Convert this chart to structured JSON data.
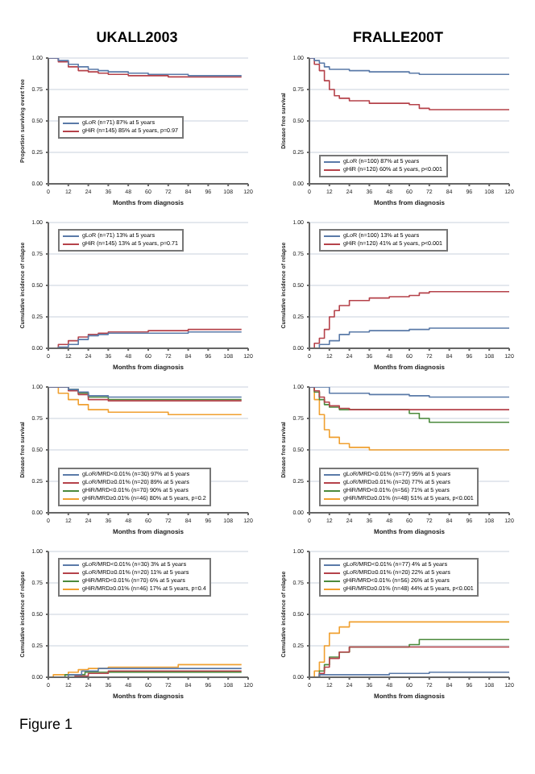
{
  "chart_data": [
    {
      "type": "step",
      "title": "UKALL2003",
      "ylabel": "Proportion surviving event free",
      "xlabel": "Months from diagnosis",
      "xlim": [
        0,
        120
      ],
      "xticks": [
        0,
        12,
        24,
        36,
        48,
        60,
        72,
        84,
        96,
        108,
        120
      ],
      "ylim": [
        0,
        1
      ],
      "yticks": [
        {
          "value": 0,
          "label": "0.00"
        },
        {
          "value": 0.25,
          "label": "0.25"
        },
        {
          "value": 0.5,
          "label": "0.50"
        },
        {
          "value": 0.75,
          "label": "0.75"
        },
        {
          "value": 1,
          "label": "1.00"
        }
      ],
      "grid": "y",
      "legend": "left",
      "series": [
        {
          "name": "gLoR (n=71) 87% at 5 years",
          "color": "#5a7aa8",
          "x": [
            0,
            6,
            12,
            18,
            24,
            30,
            36,
            48,
            60,
            72,
            84,
            96,
            108,
            116
          ],
          "values": [
            1,
            0.98,
            0.95,
            0.93,
            0.91,
            0.9,
            0.89,
            0.88,
            0.87,
            0.87,
            0.86,
            0.86,
            0.86,
            0.86
          ]
        },
        {
          "name": "gHiR (n=145) 85% at 5 years, p=0.97",
          "color": "#b5424a",
          "x": [
            0,
            6,
            12,
            18,
            24,
            30,
            36,
            48,
            60,
            72,
            84,
            96,
            108,
            116
          ],
          "values": [
            1,
            0.97,
            0.93,
            0.9,
            0.89,
            0.88,
            0.87,
            0.86,
            0.86,
            0.85,
            0.85,
            0.85,
            0.85,
            0.85
          ]
        }
      ]
    },
    {
      "type": "step",
      "title": "FRALLE200T",
      "ylabel": "Disease free survival",
      "xlabel": "Months from diagnosis",
      "xlim": [
        0,
        120
      ],
      "xticks": [
        0,
        12,
        24,
        36,
        48,
        60,
        72,
        84,
        96,
        108,
        120
      ],
      "ylim": [
        0,
        1
      ],
      "yticks": [
        {
          "value": 0,
          "label": "0.00"
        },
        {
          "value": 0.25,
          "label": "0.25"
        },
        {
          "value": 0.5,
          "label": "0.50"
        },
        {
          "value": 0.75,
          "label": "0.75"
        },
        {
          "value": 1,
          "label": "1.00"
        }
      ],
      "grid": "y",
      "legend": "bottom left",
      "series": [
        {
          "name": "gLoR (n=100) 87% at 5 years",
          "color": "#5a7aa8",
          "x": [
            0,
            3,
            6,
            9,
            12,
            24,
            36,
            48,
            60,
            66,
            72,
            96,
            120
          ],
          "values": [
            1,
            0.98,
            0.96,
            0.93,
            0.91,
            0.9,
            0.89,
            0.89,
            0.88,
            0.87,
            0.87,
            0.87,
            0.87
          ]
        },
        {
          "name": "gHiR (n=120) 60% at 5 years, p<0.001",
          "color": "#b5424a",
          "x": [
            0,
            3,
            6,
            9,
            12,
            15,
            18,
            24,
            36,
            48,
            60,
            66,
            72,
            96,
            120
          ],
          "values": [
            1,
            0.95,
            0.9,
            0.82,
            0.75,
            0.7,
            0.68,
            0.66,
            0.64,
            0.64,
            0.63,
            0.6,
            0.59,
            0.59,
            0.59
          ]
        }
      ]
    },
    {
      "type": "step",
      "ylabel": "Cumulative incidence of relapse",
      "xlabel": "Months from diagnosis",
      "xlim": [
        0,
        120
      ],
      "xticks": [
        0,
        12,
        24,
        36,
        48,
        60,
        72,
        84,
        96,
        108,
        120
      ],
      "ylim": [
        0,
        1
      ],
      "yticks": [
        {
          "value": 0,
          "label": "0.00"
        },
        {
          "value": 0.25,
          "label": "0.25"
        },
        {
          "value": 0.5,
          "label": "0.50"
        },
        {
          "value": 0.75,
          "label": "0.75"
        },
        {
          "value": 1,
          "label": "1.00"
        }
      ],
      "grid": "y",
      "legend": "top left",
      "series": [
        {
          "name": "gLoR (n=71) 13% at 5 years",
          "color": "#5a7aa8",
          "x": [
            0,
            6,
            12,
            18,
            24,
            30,
            36,
            60,
            84,
            108,
            116
          ],
          "values": [
            0,
            0.01,
            0.03,
            0.07,
            0.1,
            0.11,
            0.12,
            0.12,
            0.13,
            0.13,
            0.13
          ]
        },
        {
          "name": "gHiR (n=145) 13% at 5 years, p=0.71",
          "color": "#b5424a",
          "x": [
            0,
            6,
            12,
            18,
            24,
            30,
            36,
            60,
            84,
            108,
            116
          ],
          "values": [
            0,
            0.03,
            0.06,
            0.09,
            0.11,
            0.12,
            0.13,
            0.14,
            0.15,
            0.15,
            0.15
          ]
        }
      ]
    },
    {
      "type": "step",
      "ylabel": "Cumulative incidence of relapse",
      "xlabel": "Months from diagnosis",
      "xlim": [
        0,
        120
      ],
      "xticks": [
        0,
        12,
        24,
        36,
        48,
        60,
        72,
        84,
        96,
        108,
        120
      ],
      "ylim": [
        0,
        1
      ],
      "yticks": [
        {
          "value": 0,
          "label": "0.00"
        },
        {
          "value": 0.25,
          "label": "0.25"
        },
        {
          "value": 0.5,
          "label": "0.50"
        },
        {
          "value": 0.75,
          "label": "0.75"
        },
        {
          "value": 1,
          "label": "1.00"
        }
      ],
      "grid": "y",
      "legend": "top left",
      "series": [
        {
          "name": "gLoR (n=100) 13% at 5 years",
          "color": "#5a7aa8",
          "x": [
            0,
            6,
            12,
            18,
            24,
            36,
            48,
            60,
            72,
            96,
            120
          ],
          "values": [
            0,
            0.03,
            0.06,
            0.11,
            0.13,
            0.14,
            0.14,
            0.15,
            0.16,
            0.16,
            0.16
          ]
        },
        {
          "name": "gHiR (n=120) 41% at 5 years, p<0.001",
          "color": "#b5424a",
          "x": [
            0,
            3,
            6,
            9,
            12,
            15,
            18,
            24,
            36,
            48,
            60,
            66,
            72,
            96,
            120
          ],
          "values": [
            0,
            0.04,
            0.08,
            0.15,
            0.25,
            0.3,
            0.34,
            0.38,
            0.4,
            0.41,
            0.42,
            0.44,
            0.45,
            0.45,
            0.45
          ]
        }
      ]
    },
    {
      "type": "step",
      "ylabel": "Disease free survival",
      "xlabel": "Months from diagnosis",
      "xlim": [
        0,
        120
      ],
      "xticks": [
        0,
        12,
        24,
        36,
        48,
        60,
        72,
        84,
        96,
        108,
        120
      ],
      "ylim": [
        0,
        1
      ],
      "yticks": [
        {
          "value": 0,
          "label": "0.00"
        },
        {
          "value": 0.25,
          "label": "0.25"
        },
        {
          "value": 0.5,
          "label": "0.50"
        },
        {
          "value": 0.75,
          "label": "0.75"
        },
        {
          "value": 1,
          "label": "1.00"
        }
      ],
      "grid": "y",
      "legend": "bottom left",
      "series": [
        {
          "name": "gLoR/MRD<0.01% (n=30) 97% at 5 years",
          "color": "#5a7aa8",
          "x": [
            0,
            12,
            18,
            24,
            36,
            60,
            116
          ],
          "values": [
            1,
            0.98,
            0.96,
            0.93,
            0.92,
            0.92,
            0.92
          ]
        },
        {
          "name": "gLoR/MRD≥0.01% (n=20) 89% at 5 years",
          "color": "#b5424a",
          "x": [
            0,
            12,
            18,
            24,
            36,
            60,
            116
          ],
          "values": [
            1,
            0.97,
            0.94,
            0.9,
            0.89,
            0.89,
            0.89
          ]
        },
        {
          "name": "gHiR/MRD<0.01% (n=70) 90% at 5 years",
          "color": "#4b8a3c",
          "x": [
            0,
            12,
            18,
            24,
            36,
            60,
            116
          ],
          "values": [
            1,
            0.98,
            0.95,
            0.92,
            0.9,
            0.9,
            0.9
          ]
        },
        {
          "name": "gHiR/MRD≥0.01% (n=46) 80% at 5 years, p=0.2",
          "color": "#f0a030",
          "x": [
            0,
            6,
            12,
            18,
            24,
            36,
            60,
            72,
            116
          ],
          "values": [
            1,
            0.95,
            0.9,
            0.86,
            0.82,
            0.8,
            0.8,
            0.78,
            0.78
          ]
        }
      ]
    },
    {
      "type": "step",
      "ylabel": "Disease free survival",
      "xlabel": "Months from diagnosis",
      "xlim": [
        0,
        120
      ],
      "xticks": [
        0,
        12,
        24,
        36,
        48,
        60,
        72,
        84,
        96,
        108,
        120
      ],
      "ylim": [
        0,
        1
      ],
      "yticks": [
        {
          "value": 0,
          "label": "0.00"
        },
        {
          "value": 0.25,
          "label": "0.25"
        },
        {
          "value": 0.5,
          "label": "0.50"
        },
        {
          "value": 0.75,
          "label": "0.75"
        },
        {
          "value": 1,
          "label": "1.00"
        }
      ],
      "grid": "y",
      "legend": "bottom left",
      "series": [
        {
          "name": "gLoR/MRD<0.01% (n=77) 95% at 5 years",
          "color": "#5a7aa8",
          "x": [
            0,
            12,
            36,
            60,
            72,
            120
          ],
          "values": [
            1,
            0.95,
            0.94,
            0.93,
            0.92,
            0.92
          ]
        },
        {
          "name": "gLoR/MRD≥0.01% (n=20) 77% at 5 years",
          "color": "#b5424a",
          "x": [
            0,
            3,
            6,
            9,
            12,
            18,
            24,
            36,
            120
          ],
          "values": [
            1,
            0.97,
            0.92,
            0.88,
            0.85,
            0.83,
            0.82,
            0.82,
            0.82
          ]
        },
        {
          "name": "gHiR/MRD<0.01% (n=56) 71% at 5 years",
          "color": "#4b8a3c",
          "x": [
            0,
            3,
            6,
            9,
            12,
            18,
            24,
            48,
            60,
            66,
            72,
            120
          ],
          "values": [
            1,
            0.96,
            0.9,
            0.86,
            0.84,
            0.82,
            0.82,
            0.82,
            0.79,
            0.75,
            0.72,
            0.72
          ]
        },
        {
          "name": "gHiR/MRD≥0.01% (n=48) 51% at 5 years, p<0.001",
          "color": "#f0a030",
          "x": [
            0,
            3,
            6,
            9,
            12,
            18,
            24,
            36,
            120
          ],
          "values": [
            1,
            0.9,
            0.78,
            0.66,
            0.6,
            0.55,
            0.52,
            0.5,
            0.5
          ]
        }
      ]
    },
    {
      "type": "step",
      "ylabel": "Cumulative incidence of relapse",
      "xlabel": "Months from diagnosis",
      "xlim": [
        0,
        120
      ],
      "xticks": [
        0,
        12,
        24,
        36,
        48,
        60,
        72,
        84,
        96,
        108,
        120
      ],
      "ylim": [
        0,
        1
      ],
      "yticks": [
        {
          "value": 0,
          "label": "0.00"
        },
        {
          "value": 0.25,
          "label": "0.25"
        },
        {
          "value": 0.5,
          "label": "0.50"
        },
        {
          "value": 0.75,
          "label": "0.75"
        },
        {
          "value": 1,
          "label": "1.00"
        }
      ],
      "grid": "y",
      "legend": "top left",
      "series": [
        {
          "name": "gLoR/MRD<0.01% (n=30) 3% at 5 years",
          "color": "#5a7aa8",
          "x": [
            0,
            12,
            20,
            30,
            116
          ],
          "values": [
            0,
            0.02,
            0.05,
            0.07,
            0.07
          ]
        },
        {
          "name": "gLoR/MRD≥0.01% (n=20) 11% at 5 years",
          "color": "#b5424a",
          "x": [
            0,
            16,
            24,
            36,
            116
          ],
          "values": [
            0,
            0.01,
            0.03,
            0.05,
            0.05
          ]
        },
        {
          "name": "gHiR/MRD<0.01% (n=70) 6% at 5 years",
          "color": "#4b8a3c",
          "x": [
            0,
            10,
            22,
            116
          ],
          "values": [
            0,
            0.02,
            0.04,
            0.04
          ]
        },
        {
          "name": "gHiR/MRD≥0.01% (n=46) 17% at 5 years, p=0.4",
          "color": "#f0a030",
          "x": [
            0,
            3,
            12,
            18,
            24,
            36,
            72,
            78,
            116
          ],
          "values": [
            0,
            0.02,
            0.04,
            0.06,
            0.07,
            0.08,
            0.08,
            0.1,
            0.1
          ]
        }
      ]
    },
    {
      "type": "step",
      "ylabel": "Cumulative incidence of relapse",
      "xlabel": "Months from diagnosis",
      "xlim": [
        0,
        120
      ],
      "xticks": [
        0,
        12,
        24,
        36,
        48,
        60,
        72,
        84,
        96,
        108,
        120
      ],
      "ylim": [
        0,
        1
      ],
      "yticks": [
        {
          "value": 0,
          "label": "0.00"
        },
        {
          "value": 0.25,
          "label": "0.25"
        },
        {
          "value": 0.5,
          "label": "0.50"
        },
        {
          "value": 0.75,
          "label": "0.75"
        },
        {
          "value": 1,
          "label": "1.00"
        }
      ],
      "grid": "y",
      "legend": "top left",
      "annotations": [
        "Figure 1"
      ],
      "series": [
        {
          "name": "gLoR/MRD<0.01% (n=77) 4% at 5 years",
          "color": "#5a7aa8",
          "x": [
            0,
            6,
            48,
            72,
            120
          ],
          "values": [
            0,
            0.02,
            0.03,
            0.04,
            0.04
          ]
        },
        {
          "name": "gLoR/MRD≥0.01% (n=20) 22% at 5 years",
          "color": "#b5424a",
          "x": [
            0,
            6,
            9,
            12,
            18,
            24,
            36,
            120
          ],
          "values": [
            0,
            0.03,
            0.08,
            0.15,
            0.2,
            0.24,
            0.24,
            0.24
          ]
        },
        {
          "name": "gHiR/MRD<0.01% (n=56) 26% at 5 years",
          "color": "#4b8a3c",
          "x": [
            0,
            6,
            9,
            12,
            18,
            24,
            60,
            66,
            120
          ],
          "values": [
            0,
            0.05,
            0.1,
            0.16,
            0.2,
            0.24,
            0.26,
            0.3,
            0.3
          ]
        },
        {
          "name": "gHiR/MRD≥0.01% (n=48) 44% at 5 years, p<0.001",
          "color": "#f0a030",
          "x": [
            0,
            3,
            6,
            9,
            12,
            18,
            24,
            36,
            120
          ],
          "values": [
            0,
            0.05,
            0.12,
            0.25,
            0.35,
            0.4,
            0.44,
            0.44,
            0.44
          ]
        }
      ]
    }
  ]
}
